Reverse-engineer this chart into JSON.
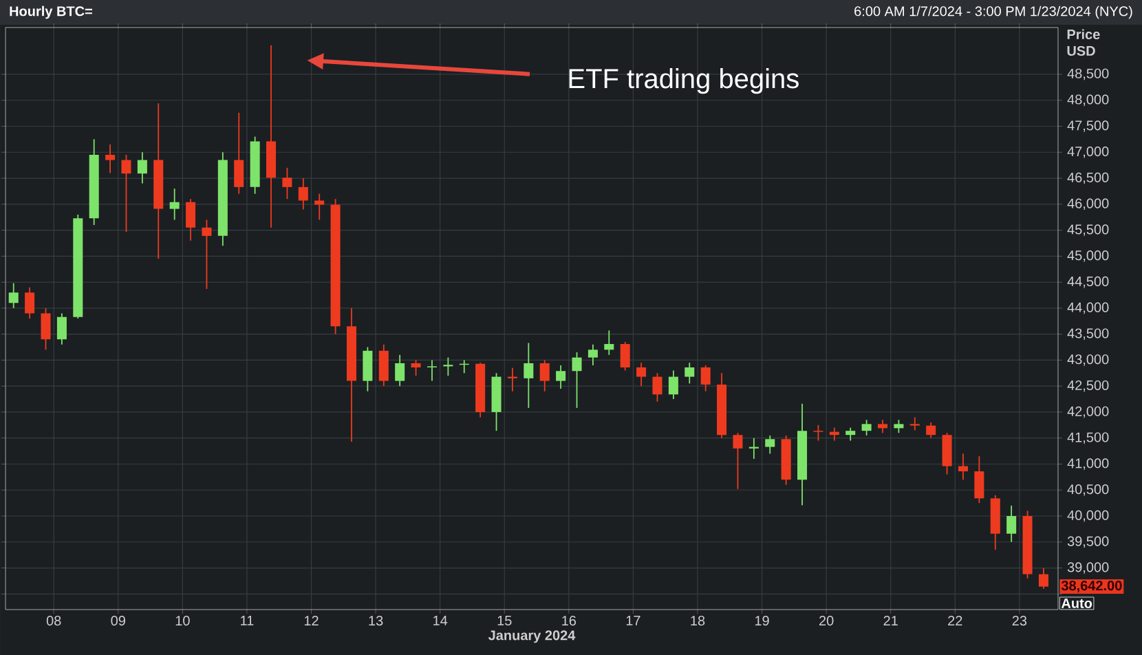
{
  "chart_data": {
    "type": "candlestick",
    "title": "Hourly BTC=",
    "subtitle": "6:00 AM 1/7/2024 - 3:00 PM 1/23/2024 (NYC)",
    "xlabel": "January 2024",
    "ylabel": "Price USD",
    "annotations": [
      "ETF trading begins",
      "38,642.00",
      "Auto"
    ],
    "xlim": [
      7.25,
      23.6
    ],
    "xticks": [
      {
        "value": 8,
        "label": "08"
      },
      {
        "value": 9,
        "label": "09"
      },
      10,
      11,
      12,
      13,
      14,
      15,
      16,
      17,
      18,
      19,
      20,
      21,
      22,
      23
    ],
    "ylim": [
      38200,
      49400
    ],
    "yticks": [
      {
        "value": 38500,
        "label": null
      },
      {
        "value": 39000,
        "label": "39,000"
      },
      {
        "value": 39500,
        "label": "39,500"
      },
      {
        "value": 40000,
        "label": "40,000"
      },
      {
        "value": 40500,
        "label": "40,500"
      },
      {
        "value": 41000,
        "label": "41,000"
      },
      {
        "value": 41500,
        "label": "41,500"
      },
      {
        "value": 42000,
        "label": "42,000"
      },
      {
        "value": 42500,
        "label": "42,500"
      },
      {
        "value": 43000,
        "label": "43,000"
      },
      {
        "value": 43500,
        "label": "43,500"
      },
      {
        "value": 44000,
        "label": "44,000"
      },
      {
        "value": 44500,
        "label": "44,500"
      },
      {
        "value": 45000,
        "label": "45,000"
      },
      {
        "value": 45500,
        "label": "45,500"
      },
      {
        "value": 46000,
        "label": "46,000"
      },
      {
        "value": 46500,
        "label": "46,500"
      },
      {
        "value": 47000,
        "label": "47,000"
      },
      {
        "value": 47500,
        "label": "47,500"
      },
      {
        "value": 48000,
        "label": "48,000"
      },
      {
        "value": 48500,
        "label": "48,500"
      }
    ],
    "grid": true,
    "series": [
      {
        "color": "#7ee36a",
        "x": [
          7.375,
          8.125,
          8.375,
          8.625,
          9.375,
          9.875,
          10.625,
          11.125,
          12.875,
          13.375,
          13.875,
          14.125,
          14.375,
          14.875,
          15.375,
          15.875,
          16.125,
          16.375,
          16.625,
          17.625,
          17.875,
          18.875,
          19.125,
          19.625,
          20.375,
          20.625,
          21.125,
          22.875
        ],
        "ohlc": [
          [
            44100,
            44480,
            44000,
            44300
          ],
          [
            43400,
            43900,
            43300,
            43830
          ],
          [
            43830,
            45800,
            43800,
            45730
          ],
          [
            45730,
            47250,
            45600,
            46950
          ],
          [
            46590,
            47000,
            46400,
            46850
          ],
          [
            45910,
            46300,
            45700,
            46040
          ],
          [
            45390,
            47000,
            45200,
            46850
          ],
          [
            46330,
            47300,
            46200,
            47210
          ],
          [
            42600,
            43250,
            42400,
            43180
          ],
          [
            42600,
            43100,
            42500,
            42940
          ],
          [
            42860,
            43000,
            42600,
            42880
          ],
          [
            42880,
            43050,
            42700,
            42910
          ],
          [
            42910,
            43000,
            42750,
            42930
          ],
          [
            42000,
            42750,
            41640,
            42680
          ],
          [
            42650,
            43330,
            42080,
            42940
          ],
          [
            42600,
            42900,
            42450,
            42790
          ],
          [
            42790,
            43150,
            42080,
            43050
          ],
          [
            43050,
            43300,
            42900,
            43200
          ],
          [
            43200,
            43570,
            43100,
            43310
          ],
          [
            42340,
            42800,
            42250,
            42680
          ],
          [
            42680,
            42950,
            42550,
            42860
          ],
          [
            41300,
            41500,
            41100,
            41330
          ],
          [
            41330,
            41550,
            41200,
            41480
          ],
          [
            40700,
            42160,
            40210,
            41640
          ],
          [
            41560,
            41700,
            41450,
            41640
          ],
          [
            41640,
            41850,
            41550,
            41770
          ],
          [
            41690,
            41850,
            41600,
            41770
          ],
          [
            39660,
            40200,
            39500,
            40000
          ]
        ]
      },
      {
        "color": "#ee3b1f",
        "x": [
          7.625,
          7.875,
          8.875,
          9.125,
          9.625,
          10.125,
          10.375,
          10.875,
          11.375,
          11.625,
          11.875,
          12.125,
          12.375,
          12.625,
          13.125,
          13.625,
          14.625,
          15.125,
          15.625,
          16.875,
          17.125,
          17.375,
          18.125,
          18.375,
          18.625,
          19.375,
          19.875,
          20.125,
          20.875,
          21.375,
          21.625,
          21.875,
          22.125,
          22.375,
          22.625,
          23.125,
          23.375
        ],
        "ohlc": [
          [
            44300,
            44400,
            43800,
            43900
          ],
          [
            43900,
            44000,
            43200,
            43400
          ],
          [
            46950,
            47150,
            46600,
            46850
          ],
          [
            46850,
            46950,
            45470,
            46590
          ],
          [
            46850,
            47940,
            44950,
            45910
          ],
          [
            46040,
            46100,
            45300,
            45550
          ],
          [
            45550,
            45700,
            44370,
            45390
          ],
          [
            46850,
            47760,
            46200,
            46330
          ],
          [
            47210,
            49060,
            45550,
            46510
          ],
          [
            46510,
            46700,
            46100,
            46330
          ],
          [
            46330,
            46500,
            45900,
            46070
          ],
          [
            46070,
            46200,
            45700,
            45990
          ],
          [
            45990,
            46100,
            43500,
            43650
          ],
          [
            43650,
            44000,
            41430,
            42600
          ],
          [
            43180,
            43300,
            42500,
            42600
          ],
          [
            42940,
            43000,
            42700,
            42860
          ],
          [
            42930,
            42950,
            41900,
            42000
          ],
          [
            42680,
            42850,
            42400,
            42650
          ],
          [
            42940,
            43000,
            42400,
            42600
          ],
          [
            43310,
            43350,
            42800,
            42860
          ],
          [
            42860,
            42950,
            42500,
            42680
          ],
          [
            42680,
            42750,
            42200,
            42340
          ],
          [
            42860,
            42900,
            42400,
            42530
          ],
          [
            42530,
            42750,
            41500,
            41560
          ],
          [
            41560,
            41600,
            40520,
            41300
          ],
          [
            41480,
            41550,
            40600,
            40700
          ],
          [
            41640,
            41750,
            41450,
            41620
          ],
          [
            41620,
            41700,
            41450,
            41560
          ],
          [
            41770,
            41850,
            41600,
            41690
          ],
          [
            41770,
            41900,
            41650,
            41740
          ],
          [
            41740,
            41800,
            41500,
            41560
          ],
          [
            41560,
            41600,
            40800,
            40960
          ],
          [
            40960,
            41200,
            40700,
            40860
          ],
          [
            40860,
            41150,
            40250,
            40340
          ],
          [
            40340,
            40400,
            39350,
            39660
          ],
          [
            40000,
            40100,
            38800,
            38880
          ],
          [
            38880,
            39000,
            38600,
            38642
          ]
        ]
      }
    ]
  }
}
